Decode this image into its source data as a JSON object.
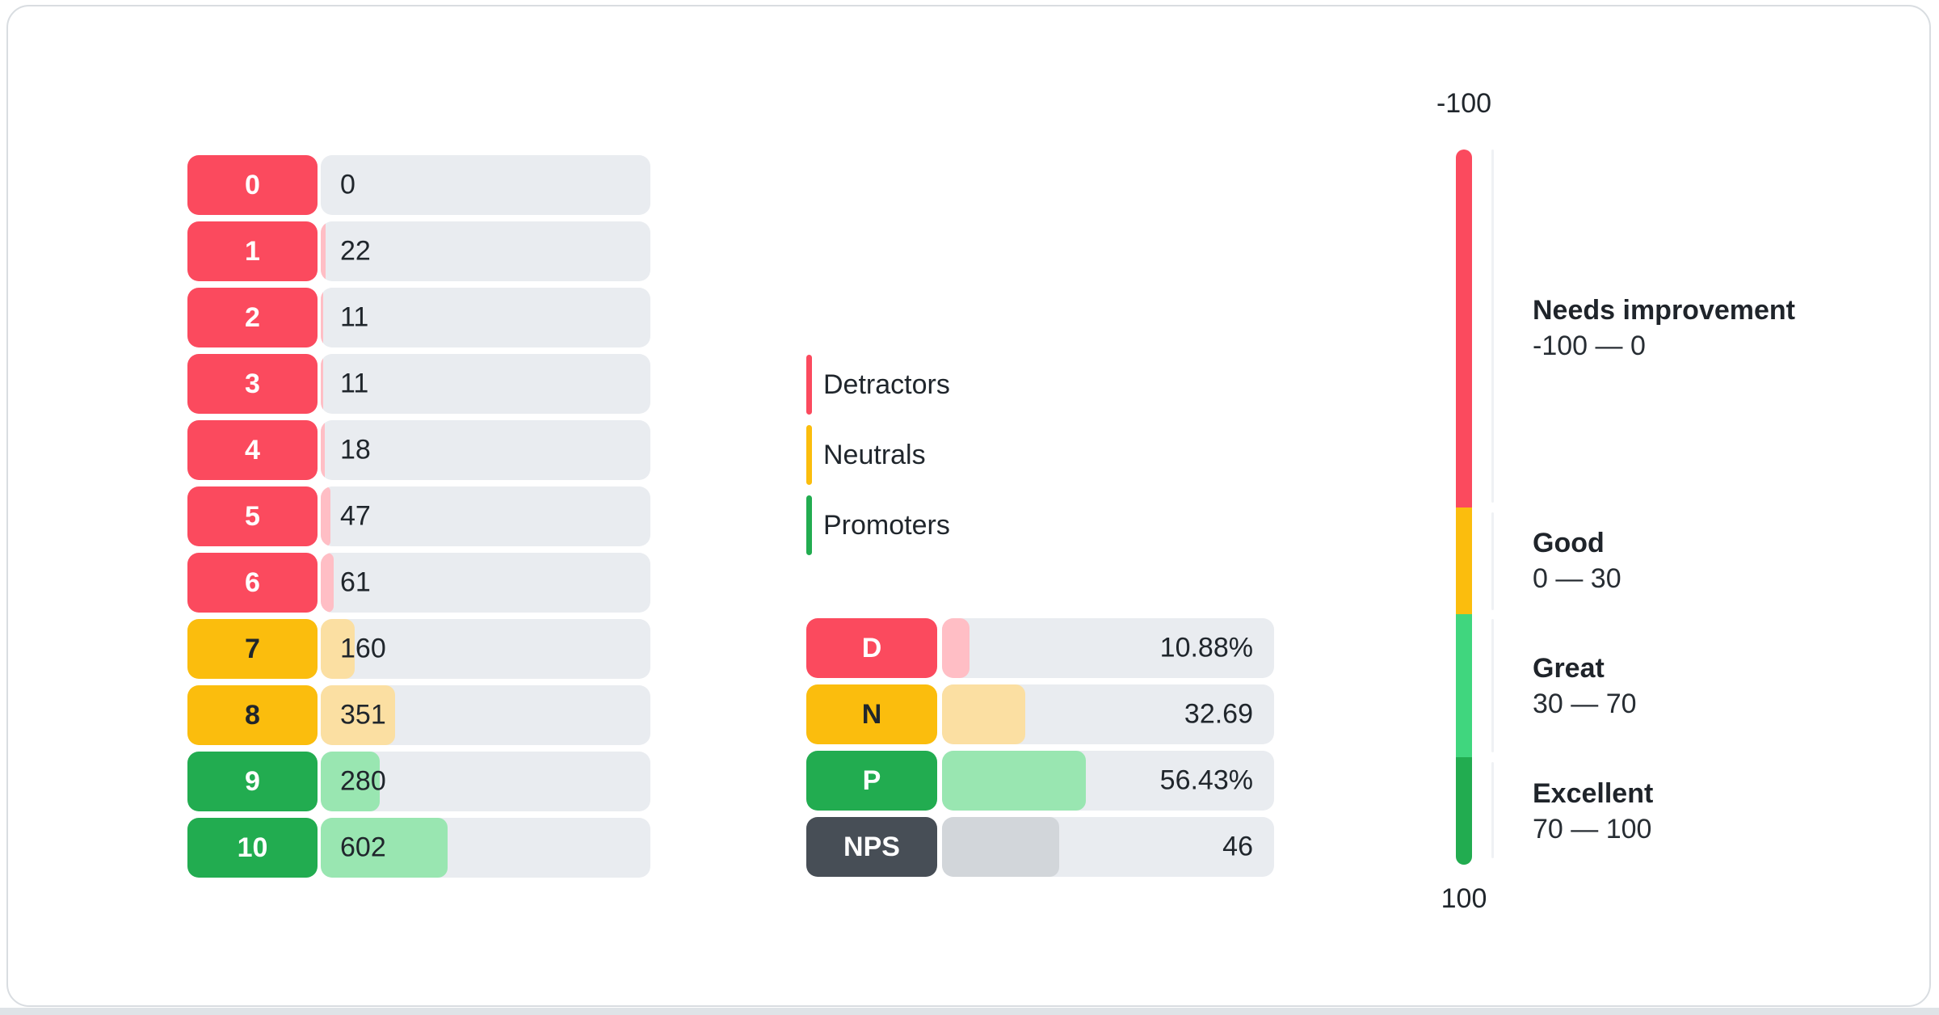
{
  "legend": {
    "items": [
      {
        "label": "Detractors",
        "color": "#FB4A5E"
      },
      {
        "label": "Neutrals",
        "color": "#FBBD0D"
      },
      {
        "label": "Promoters",
        "color": "#22AC50"
      }
    ]
  },
  "chart_data": [
    {
      "type": "bar",
      "name": "score_distribution",
      "categories": [
        "0",
        "1",
        "2",
        "3",
        "4",
        "5",
        "6",
        "7",
        "8",
        "9",
        "10"
      ],
      "values": [
        0,
        22,
        11,
        11,
        18,
        47,
        61,
        160,
        351,
        280,
        602
      ],
      "groups": [
        "detractor",
        "detractor",
        "detractor",
        "detractor",
        "detractor",
        "detractor",
        "detractor",
        "neutral",
        "neutral",
        "promoter",
        "promoter"
      ]
    },
    {
      "type": "bar",
      "name": "nps_summary",
      "fill_scale_max": 130,
      "rows": [
        {
          "label": "D",
          "group": "detractor",
          "value": 10.88,
          "display": "10.88%"
        },
        {
          "label": "N",
          "group": "neutral",
          "value": 32.69,
          "display": "32.69"
        },
        {
          "label": "P",
          "group": "promoter",
          "value": 56.43,
          "display": "56.43%"
        },
        {
          "label": "NPS",
          "group": "nps",
          "value": 46,
          "display": "46"
        }
      ]
    },
    {
      "type": "gauge",
      "name": "nps_scale",
      "min": -100,
      "max": 100,
      "top_label": "-100",
      "bottom_label": "100",
      "ranges": [
        {
          "title": "Needs improvement",
          "range_text": "-100 — 0",
          "from": -100,
          "to": 0,
          "color": "#FB4A5E"
        },
        {
          "title": "Good",
          "range_text": "0 — 30",
          "from": 0,
          "to": 30,
          "color": "#FBBD0D"
        },
        {
          "title": "Great",
          "range_text": "30 — 70",
          "from": 30,
          "to": 70,
          "color": "#40D67E"
        },
        {
          "title": "Excellent",
          "range_text": "70 — 100",
          "from": 70,
          "to": 100,
          "color": "#22AC50"
        }
      ]
    }
  ],
  "colors": {
    "detractor": {
      "label_bg": "#FB4A5E",
      "label_text": "#FFFFFF",
      "fill": "#FFBEC5"
    },
    "neutral": {
      "label_bg": "#FBBD0D",
      "label_text": "#20262C",
      "fill": "#FBDFA2"
    },
    "promoter": {
      "label_bg": "#22AC50",
      "label_text": "#FFFFFF",
      "fill": "#99E6B1"
    },
    "nps": {
      "label_bg": "#474E56",
      "label_text": "#FFFFFF",
      "fill": "#D2D6DA"
    },
    "track": "#E9ECF0",
    "text": "#20262C"
  }
}
